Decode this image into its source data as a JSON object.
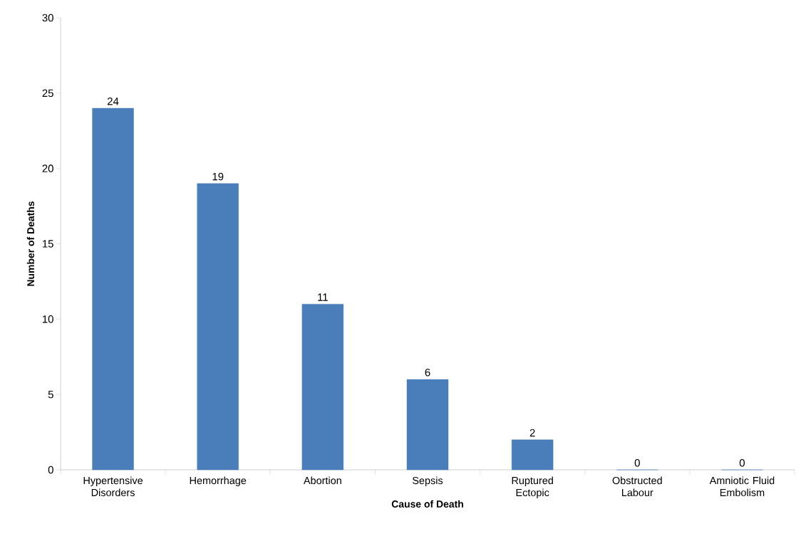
{
  "chart_data": {
    "type": "bar",
    "xlabel": "Cause of Death",
    "ylabel": "Number of Deaths",
    "categories": [
      "Hypertensive Disorders",
      "Hemorrhage",
      "Abortion",
      "Sepsis",
      "Ruptured Ectopic",
      "Obstructed Labour",
      "Amniotic Fluid Embolism"
    ],
    "values": [
      24,
      19,
      11,
      6,
      2,
      0,
      0
    ],
    "color": "#4a7ebb",
    "ylim": [
      0,
      30
    ],
    "yticks": [
      0,
      5,
      10,
      15,
      20,
      25,
      30
    ],
    "data_labels": true
  }
}
